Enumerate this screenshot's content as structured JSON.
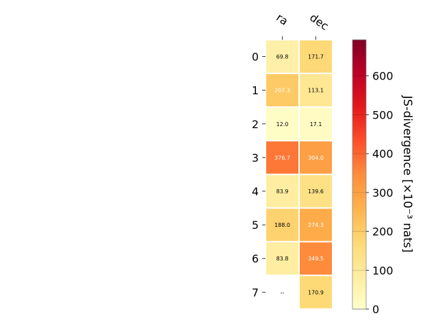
{
  "chart_data": {
    "type": "heatmap",
    "columns": [
      "ra",
      "dec"
    ],
    "rows": [
      "0",
      "1",
      "2",
      "3",
      "4",
      "5",
      "6",
      "7"
    ],
    "values": [
      [
        69.8,
        171.7
      ],
      [
        207.3,
        113.1
      ],
      [
        12.0,
        17.1
      ],
      [
        376.7,
        304.0
      ],
      [
        83.9,
        139.6
      ],
      [
        188.0,
        274.3
      ],
      [
        83.8,
        349.5
      ],
      [
        null,
        170.9
      ]
    ],
    "cell_labels": [
      [
        "69.8",
        "171.7"
      ],
      [
        "207.3",
        "113.1"
      ],
      [
        "12.0",
        "17.1"
      ],
      [
        "376.7",
        "304.0"
      ],
      [
        "83.9",
        "139.6"
      ],
      [
        "188.0",
        "274.3"
      ],
      [
        "83.8",
        "349.5"
      ],
      [
        "--",
        "170.9"
      ]
    ],
    "colorbar": {
      "label": "JS-divergence [×10⁻³ nats]",
      "min": 0,
      "max": 693,
      "ticks": [
        "0",
        "100",
        "200",
        "300",
        "400",
        "500",
        "600"
      ],
      "tick_values": [
        0,
        100,
        200,
        300,
        400,
        500,
        600
      ],
      "colormap": "YlOrRd"
    }
  }
}
